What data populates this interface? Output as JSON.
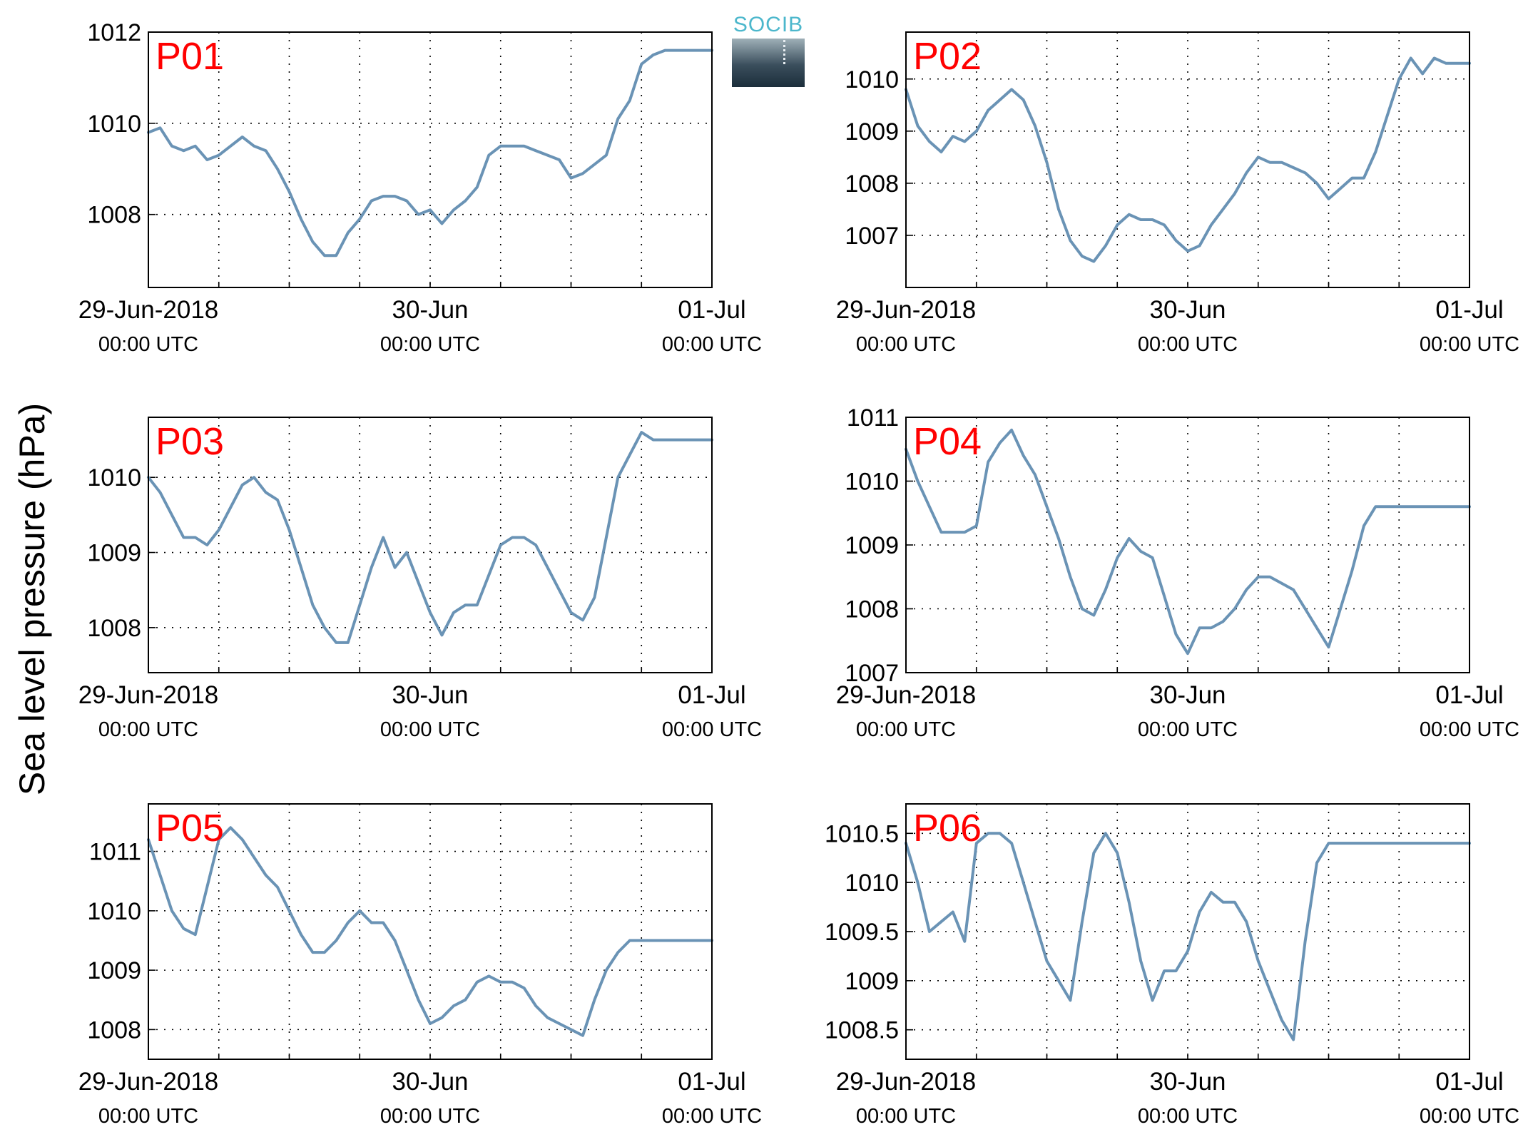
{
  "figure": {
    "ylabel": "Sea level pressure (hPa)",
    "logo_text": "SOCIB",
    "colors": {
      "line": "#6a93b5",
      "panel_label": "#ff0000",
      "axis": "#000000",
      "grid": "#000000"
    },
    "x_ticks": [
      {
        "x": 0,
        "line1": "29-Jun-2018",
        "line2": "00:00 UTC"
      },
      {
        "x": 24,
        "line1": "30-Jun",
        "line2": "00:00 UTC"
      },
      {
        "x": 48,
        "line1": "01-Jul",
        "line2": "00:00 UTC"
      }
    ],
    "x_grid_hours": [
      6,
      12,
      18,
      24,
      30,
      36,
      42
    ]
  },
  "chart_data": [
    {
      "type": "line",
      "title": "P01",
      "xlim": [
        0,
        48
      ],
      "ylim": [
        1006.4,
        1012
      ],
      "yticks": [
        1008,
        1010,
        1012
      ],
      "x": [
        0,
        1,
        2,
        3,
        4,
        5,
        6,
        7,
        8,
        9,
        10,
        11,
        12,
        13,
        14,
        15,
        16,
        17,
        18,
        19,
        20,
        21,
        22,
        23,
        24,
        25,
        26,
        27,
        28,
        29,
        30,
        31,
        32,
        33,
        34,
        35,
        36,
        37,
        38,
        39,
        40,
        41,
        42,
        43,
        44,
        45,
        46,
        47,
        48
      ],
      "values": [
        1009.8,
        1009.9,
        1009.5,
        1009.4,
        1009.5,
        1009.2,
        1009.3,
        1009.5,
        1009.7,
        1009.5,
        1009.4,
        1009.0,
        1008.5,
        1007.9,
        1007.4,
        1007.1,
        1007.1,
        1007.6,
        1007.9,
        1008.3,
        1008.4,
        1008.4,
        1008.3,
        1008.0,
        1008.1,
        1007.8,
        1008.1,
        1008.3,
        1008.6,
        1009.3,
        1009.5,
        1009.5,
        1009.5,
        1009.4,
        1009.3,
        1009.2,
        1008.8,
        1008.9,
        1009.1,
        1009.3,
        1010.1,
        1010.5,
        1011.3,
        1011.5,
        1011.6,
        1011.6,
        1011.6,
        1011.6,
        1011.6
      ]
    },
    {
      "type": "line",
      "title": "P02",
      "xlim": [
        0,
        48
      ],
      "ylim": [
        1006.0,
        1010.9
      ],
      "yticks": [
        1007,
        1008,
        1009,
        1010
      ],
      "x": [
        0,
        1,
        2,
        3,
        4,
        5,
        6,
        7,
        8,
        9,
        10,
        11,
        12,
        13,
        14,
        15,
        16,
        17,
        18,
        19,
        20,
        21,
        22,
        23,
        24,
        25,
        26,
        27,
        28,
        29,
        30,
        31,
        32,
        33,
        34,
        35,
        36,
        37,
        38,
        39,
        40,
        41,
        42,
        43,
        44,
        45,
        46,
        47,
        48
      ],
      "values": [
        1009.8,
        1009.1,
        1008.8,
        1008.6,
        1008.9,
        1008.8,
        1009.0,
        1009.4,
        1009.6,
        1009.8,
        1009.6,
        1009.1,
        1008.4,
        1007.5,
        1006.9,
        1006.6,
        1006.5,
        1006.8,
        1007.2,
        1007.4,
        1007.3,
        1007.3,
        1007.2,
        1006.9,
        1006.7,
        1006.8,
        1007.2,
        1007.5,
        1007.8,
        1008.2,
        1008.5,
        1008.4,
        1008.4,
        1008.3,
        1008.2,
        1008.0,
        1007.7,
        1007.9,
        1008.1,
        1008.1,
        1008.6,
        1009.3,
        1010.0,
        1010.4,
        1010.1,
        1010.4,
        1010.3,
        1010.3,
        1010.3
      ]
    },
    {
      "type": "line",
      "title": "P03",
      "xlim": [
        0,
        48
      ],
      "ylim": [
        1007.4,
        1010.8
      ],
      "yticks": [
        1008,
        1009,
        1010
      ],
      "x": [
        0,
        1,
        2,
        3,
        4,
        5,
        6,
        7,
        8,
        9,
        10,
        11,
        12,
        13,
        14,
        15,
        16,
        17,
        18,
        19,
        20,
        21,
        22,
        23,
        24,
        25,
        26,
        27,
        28,
        29,
        30,
        31,
        32,
        33,
        34,
        35,
        36,
        37,
        38,
        39,
        40,
        41,
        42,
        43,
        44,
        45,
        46,
        47,
        48
      ],
      "values": [
        1010.0,
        1009.8,
        1009.5,
        1009.2,
        1009.2,
        1009.1,
        1009.3,
        1009.6,
        1009.9,
        1010.0,
        1009.8,
        1009.7,
        1009.3,
        1008.8,
        1008.3,
        1008.0,
        1007.8,
        1007.8,
        1008.3,
        1008.8,
        1009.2,
        1008.8,
        1009.0,
        1008.6,
        1008.2,
        1007.9,
        1008.2,
        1008.3,
        1008.3,
        1008.7,
        1009.1,
        1009.2,
        1009.2,
        1009.1,
        1008.8,
        1008.5,
        1008.2,
        1008.1,
        1008.4,
        1009.2,
        1010.0,
        1010.3,
        1010.6,
        1010.5,
        1010.5,
        1010.5,
        1010.5,
        1010.5,
        1010.5
      ]
    },
    {
      "type": "line",
      "title": "P04",
      "xlim": [
        0,
        48
      ],
      "ylim": [
        1007,
        1011
      ],
      "yticks": [
        1007,
        1008,
        1009,
        1010,
        1011
      ],
      "x": [
        0,
        1,
        2,
        3,
        4,
        5,
        6,
        7,
        8,
        9,
        10,
        11,
        12,
        13,
        14,
        15,
        16,
        17,
        18,
        19,
        20,
        21,
        22,
        23,
        24,
        25,
        26,
        27,
        28,
        29,
        30,
        31,
        32,
        33,
        34,
        35,
        36,
        37,
        38,
        39,
        40,
        41,
        42,
        43,
        44,
        45,
        46,
        47,
        48
      ],
      "values": [
        1010.5,
        1010.0,
        1009.6,
        1009.2,
        1009.2,
        1009.2,
        1009.3,
        1010.3,
        1010.6,
        1010.8,
        1010.4,
        1010.1,
        1009.6,
        1009.1,
        1008.5,
        1008.0,
        1007.9,
        1008.3,
        1008.8,
        1009.1,
        1008.9,
        1008.8,
        1008.2,
        1007.6,
        1007.3,
        1007.7,
        1007.7,
        1007.8,
        1008.0,
        1008.3,
        1008.5,
        1008.5,
        1008.4,
        1008.3,
        1008.0,
        1007.7,
        1007.4,
        1008.0,
        1008.6,
        1009.3,
        1009.6,
        1009.6,
        1009.6,
        1009.6,
        1009.6,
        1009.6,
        1009.6,
        1009.6,
        1009.6
      ]
    },
    {
      "type": "line",
      "title": "P05",
      "xlim": [
        0,
        48
      ],
      "ylim": [
        1007.5,
        1011.8
      ],
      "yticks": [
        1008,
        1009,
        1010,
        1011
      ],
      "x": [
        0,
        1,
        2,
        3,
        4,
        5,
        6,
        7,
        8,
        9,
        10,
        11,
        12,
        13,
        14,
        15,
        16,
        17,
        18,
        19,
        20,
        21,
        22,
        23,
        24,
        25,
        26,
        27,
        28,
        29,
        30,
        31,
        32,
        33,
        34,
        35,
        36,
        37,
        38,
        39,
        40,
        41,
        42,
        43,
        44,
        45,
        46,
        47,
        48
      ],
      "values": [
        1011.2,
        1010.6,
        1010.0,
        1009.7,
        1009.6,
        1010.4,
        1011.2,
        1011.4,
        1011.2,
        1010.9,
        1010.6,
        1010.4,
        1010.0,
        1009.6,
        1009.3,
        1009.3,
        1009.5,
        1009.8,
        1010.0,
        1009.8,
        1009.8,
        1009.5,
        1009.0,
        1008.5,
        1008.1,
        1008.2,
        1008.4,
        1008.5,
        1008.8,
        1008.9,
        1008.8,
        1008.8,
        1008.7,
        1008.4,
        1008.2,
        1008.1,
        1008.0,
        1007.9,
        1008.5,
        1009.0,
        1009.3,
        1009.5,
        1009.5,
        1009.5,
        1009.5,
        1009.5,
        1009.5,
        1009.5,
        1009.5
      ]
    },
    {
      "type": "line",
      "title": "P06",
      "xlim": [
        0,
        48
      ],
      "ylim": [
        1008.2,
        1010.8
      ],
      "yticks": [
        1008.5,
        1009,
        1009.5,
        1010,
        1010.5
      ],
      "x": [
        0,
        1,
        2,
        3,
        4,
        5,
        6,
        7,
        8,
        9,
        10,
        11,
        12,
        13,
        14,
        15,
        16,
        17,
        18,
        19,
        20,
        21,
        22,
        23,
        24,
        25,
        26,
        27,
        28,
        29,
        30,
        31,
        32,
        33,
        34,
        35,
        36,
        37,
        38,
        39,
        40,
        41,
        42,
        43,
        44,
        45,
        46,
        47,
        48
      ],
      "values": [
        1010.4,
        1010.0,
        1009.5,
        1009.6,
        1009.7,
        1009.4,
        1010.4,
        1010.5,
        1010.5,
        1010.4,
        1010.0,
        1009.6,
        1009.2,
        1009.0,
        1008.8,
        1009.6,
        1010.3,
        1010.5,
        1010.3,
        1009.8,
        1009.2,
        1008.8,
        1009.1,
        1009.1,
        1009.3,
        1009.7,
        1009.9,
        1009.8,
        1009.8,
        1009.6,
        1009.2,
        1008.9,
        1008.6,
        1008.4,
        1009.4,
        1010.2,
        1010.4,
        1010.4,
        1010.4,
        1010.4,
        1010.4,
        1010.4,
        1010.4,
        1010.4,
        1010.4,
        1010.4,
        1010.4,
        1010.4,
        1010.4
      ]
    }
  ]
}
